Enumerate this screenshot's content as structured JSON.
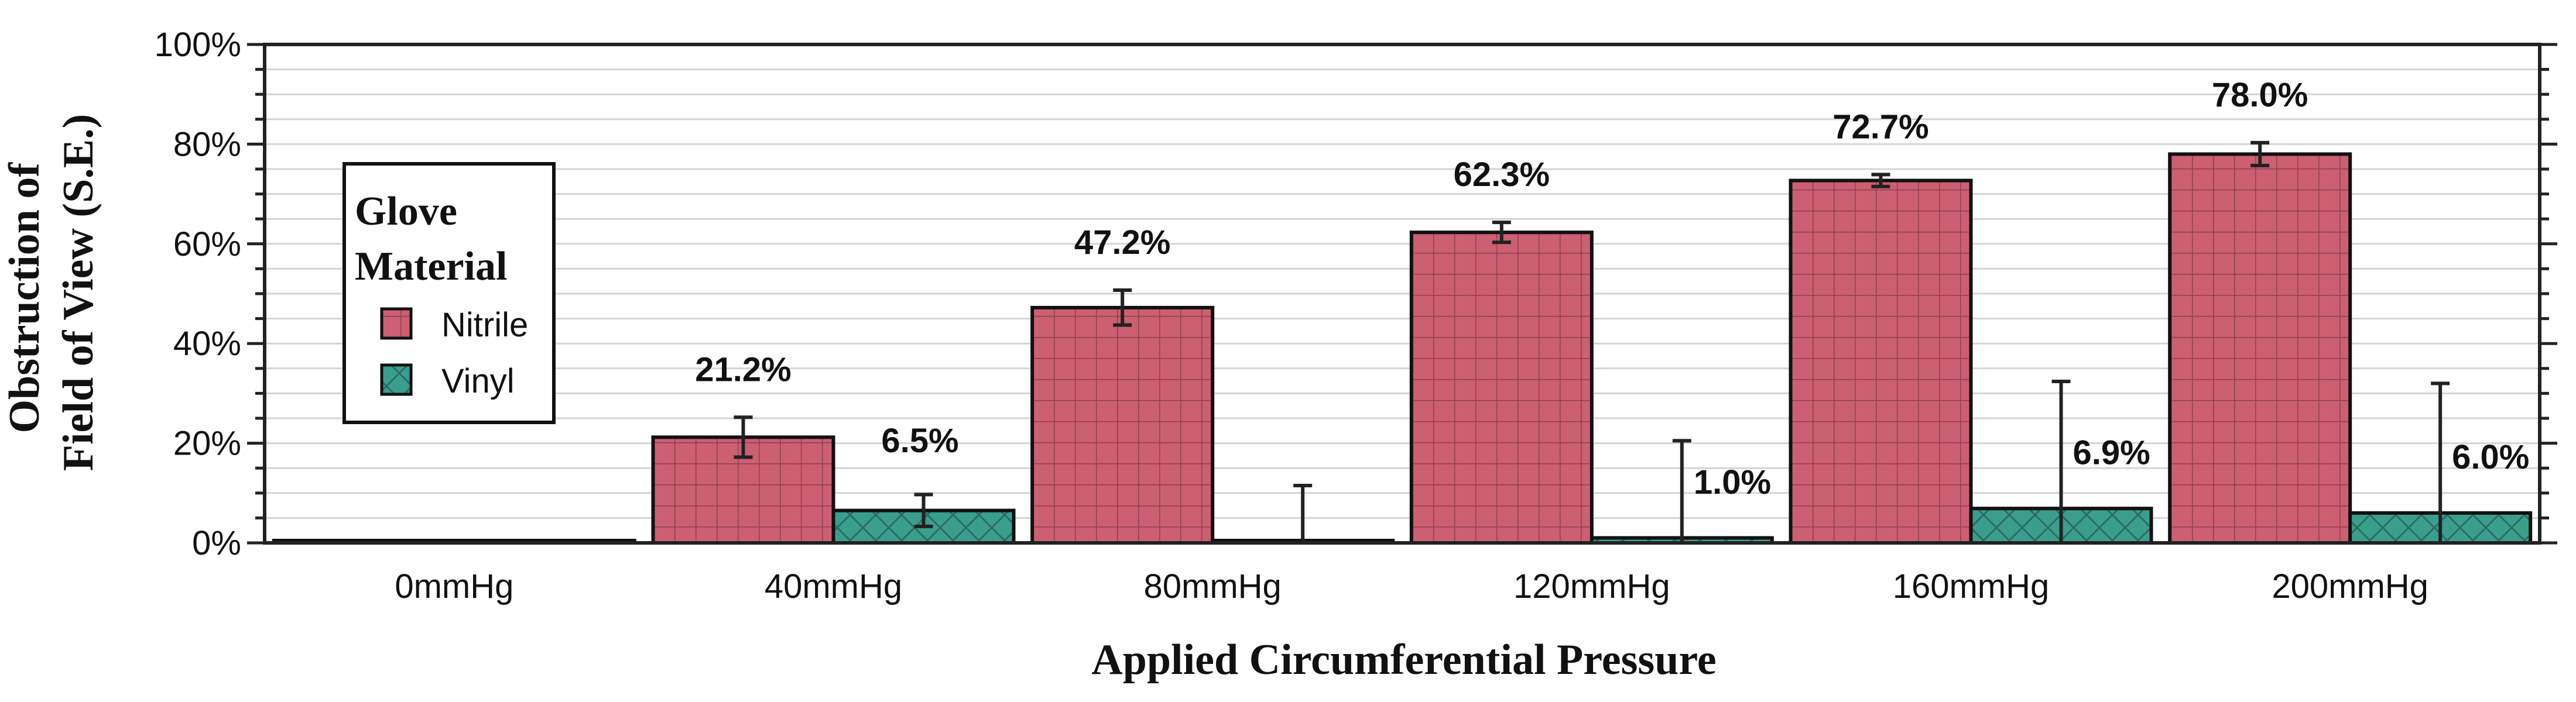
{
  "chart_data": {
    "type": "bar",
    "xlabel": "Applied Circumferential Pressure",
    "ylabel_lines": [
      "Obstruction of",
      "Field of View (S.E.)"
    ],
    "categories": [
      "0mmHg",
      "40mmHg",
      "80mmHg",
      "120mmHg",
      "160mmHg",
      "200mmHg"
    ],
    "ylim": [
      0,
      100
    ],
    "yticks": [
      0,
      20,
      40,
      60,
      80,
      100
    ],
    "ytick_labels": [
      "0%",
      "20%",
      "40%",
      "60%",
      "80%",
      "100%"
    ],
    "grid": true,
    "legend": {
      "title_lines": [
        "Glove",
        "Material"
      ],
      "placement": "upper-left"
    },
    "series": [
      {
        "name": "Nitrile",
        "color": "#cc5f72",
        "pattern": "grid",
        "values": [
          0,
          21.2,
          47.2,
          62.3,
          72.7,
          78.0
        ],
        "errors": [
          0,
          4.0,
          3.5,
          2.0,
          1.2,
          2.3
        ],
        "labels": [
          "",
          "21.2%",
          "47.2%",
          "62.3%",
          "72.7%",
          "78.0%"
        ]
      },
      {
        "name": "Vinyl",
        "color": "#3a9e8d",
        "pattern": "crosshatch",
        "values": [
          0,
          6.5,
          0,
          1.0,
          6.9,
          6.0
        ],
        "errors": [
          0,
          3.2,
          11.5,
          19.5,
          25.5,
          26.0
        ],
        "labels": [
          "",
          "6.5%",
          "",
          "1.0%",
          "6.9%",
          "6.0%"
        ]
      }
    ]
  }
}
